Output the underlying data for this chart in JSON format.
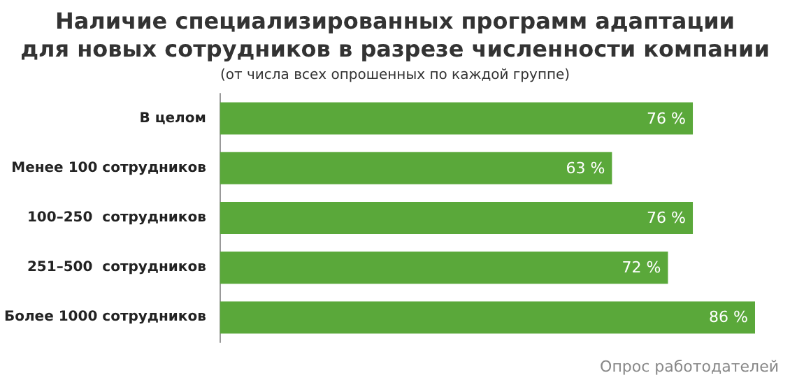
{
  "chart_data": {
    "type": "bar",
    "orientation": "horizontal",
    "title": "Наличие специализированных программ адаптации\nдля новых сотрудников в разрезе численности компании",
    "subtitle": "(от числа всех опрошенных по каждой группе)",
    "categories": [
      "В целом",
      "Менее 100 сотрудников",
      "100–250  сотрудников",
      "251–500  сотрудников",
      "Более 1000 сотрудников"
    ],
    "values": [
      76,
      63,
      76,
      72,
      86
    ],
    "value_labels": [
      "76 %",
      "63 %",
      "76 %",
      "72 %",
      "86 %"
    ],
    "color": "#5aa83a",
    "annotations": [
      "Опрос работодателей"
    ]
  }
}
